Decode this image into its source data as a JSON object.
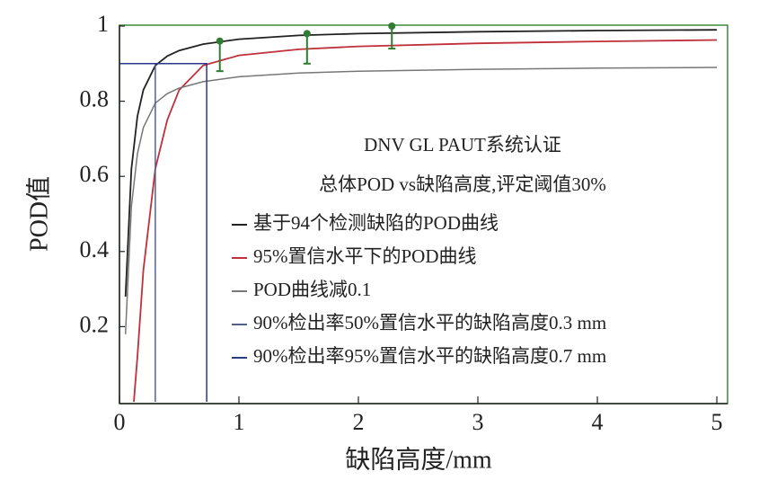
{
  "chart_data": {
    "type": "line",
    "title": "DNV GL PAUT系统认证",
    "subtitle": "总体POD vs缺陷高度,评定阈值30%",
    "x_label": "缺陷高度/mm",
    "y_label": "POD值",
    "xlim": [
      0,
      5.09
    ],
    "ylim": [
      0,
      1.0
    ],
    "xticks": [
      0,
      1,
      2,
      3,
      4,
      5
    ],
    "yticks": [
      0.2,
      0.4,
      0.6,
      0.8,
      1.0
    ],
    "series": [
      {
        "name": "基于94个检测缺陷的POD曲线",
        "color": "#222222",
        "x": [
          0.05,
          0.1,
          0.15,
          0.2,
          0.3,
          0.4,
          0.5,
          0.7,
          1,
          1.5,
          2,
          3,
          4,
          5
        ],
        "values": [
          0.28,
          0.62,
          0.76,
          0.83,
          0.895,
          0.92,
          0.935,
          0.952,
          0.965,
          0.975,
          0.98,
          0.985,
          0.988,
          0.99
        ]
      },
      {
        "name": "95%置信水平下的POD曲线",
        "color": "#c0303a",
        "x": [
          0.12,
          0.15,
          0.2,
          0.3,
          0.4,
          0.5,
          0.7,
          1,
          1.5,
          2,
          3,
          4,
          5
        ],
        "values": [
          0,
          0.12,
          0.35,
          0.62,
          0.75,
          0.83,
          0.895,
          0.922,
          0.938,
          0.946,
          0.954,
          0.959,
          0.963
        ]
      },
      {
        "name": "POD曲线减0.1",
        "color": "#777777",
        "x": [
          0.05,
          0.1,
          0.15,
          0.2,
          0.3,
          0.4,
          0.5,
          0.7,
          1,
          1.5,
          2,
          3,
          4,
          5
        ],
        "values": [
          0.18,
          0.52,
          0.66,
          0.73,
          0.795,
          0.82,
          0.835,
          0.852,
          0.865,
          0.875,
          0.88,
          0.885,
          0.888,
          0.89
        ]
      },
      {
        "name": "90%检出率50%置信水平的缺陷高度0.3 mm",
        "color": "#55608f",
        "x": [
          0,
          0.3,
          0.3
        ],
        "values": [
          0.9,
          0.9,
          0
        ]
      },
      {
        "name": "90%检出率95%置信水平的缺陷高度0.7 mm",
        "color": "#2b3a8a",
        "x": [
          0,
          0.73,
          0.73
        ],
        "values": [
          0.9,
          0.9,
          0
        ]
      }
    ],
    "points": {
      "color": "#2e7d32",
      "x": [
        0.84,
        1.57,
        2.28
      ],
      "values": [
        0.96,
        0.98,
        1.0
      ],
      "errors": [
        0.08,
        0.08,
        0.06
      ]
    }
  }
}
